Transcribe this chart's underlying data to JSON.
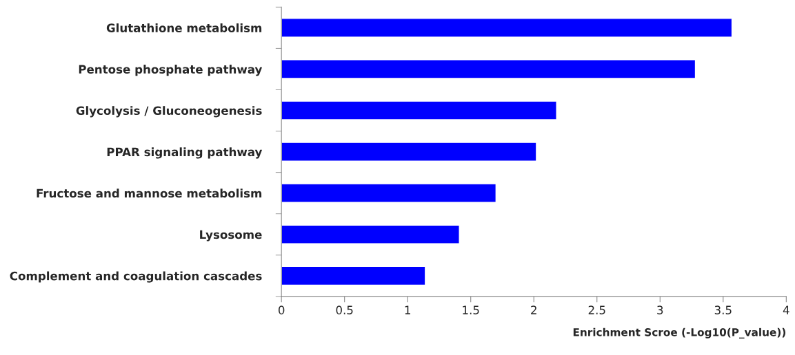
{
  "chart_data": {
    "type": "bar",
    "orientation": "horizontal",
    "categories": [
      "Glutathione metabolism",
      "Pentose phosphate pathway",
      "Glycolysis / Gluconeogenesis",
      "PPAR signaling pathway",
      "Fructose and mannose metabolism",
      "Lysosome",
      "Complement and coagulation cascades"
    ],
    "values": [
      3.57,
      3.28,
      2.18,
      2.02,
      1.7,
      1.41,
      1.14
    ],
    "color": "#0000ff",
    "xlabel": "Enrichment Scroe (-Log10(P_value))",
    "xlim": [
      0,
      4
    ],
    "xticks": [
      0,
      0.5,
      1,
      1.5,
      2,
      2.5,
      3,
      3.5,
      4
    ],
    "grid": false,
    "legend": false
  }
}
